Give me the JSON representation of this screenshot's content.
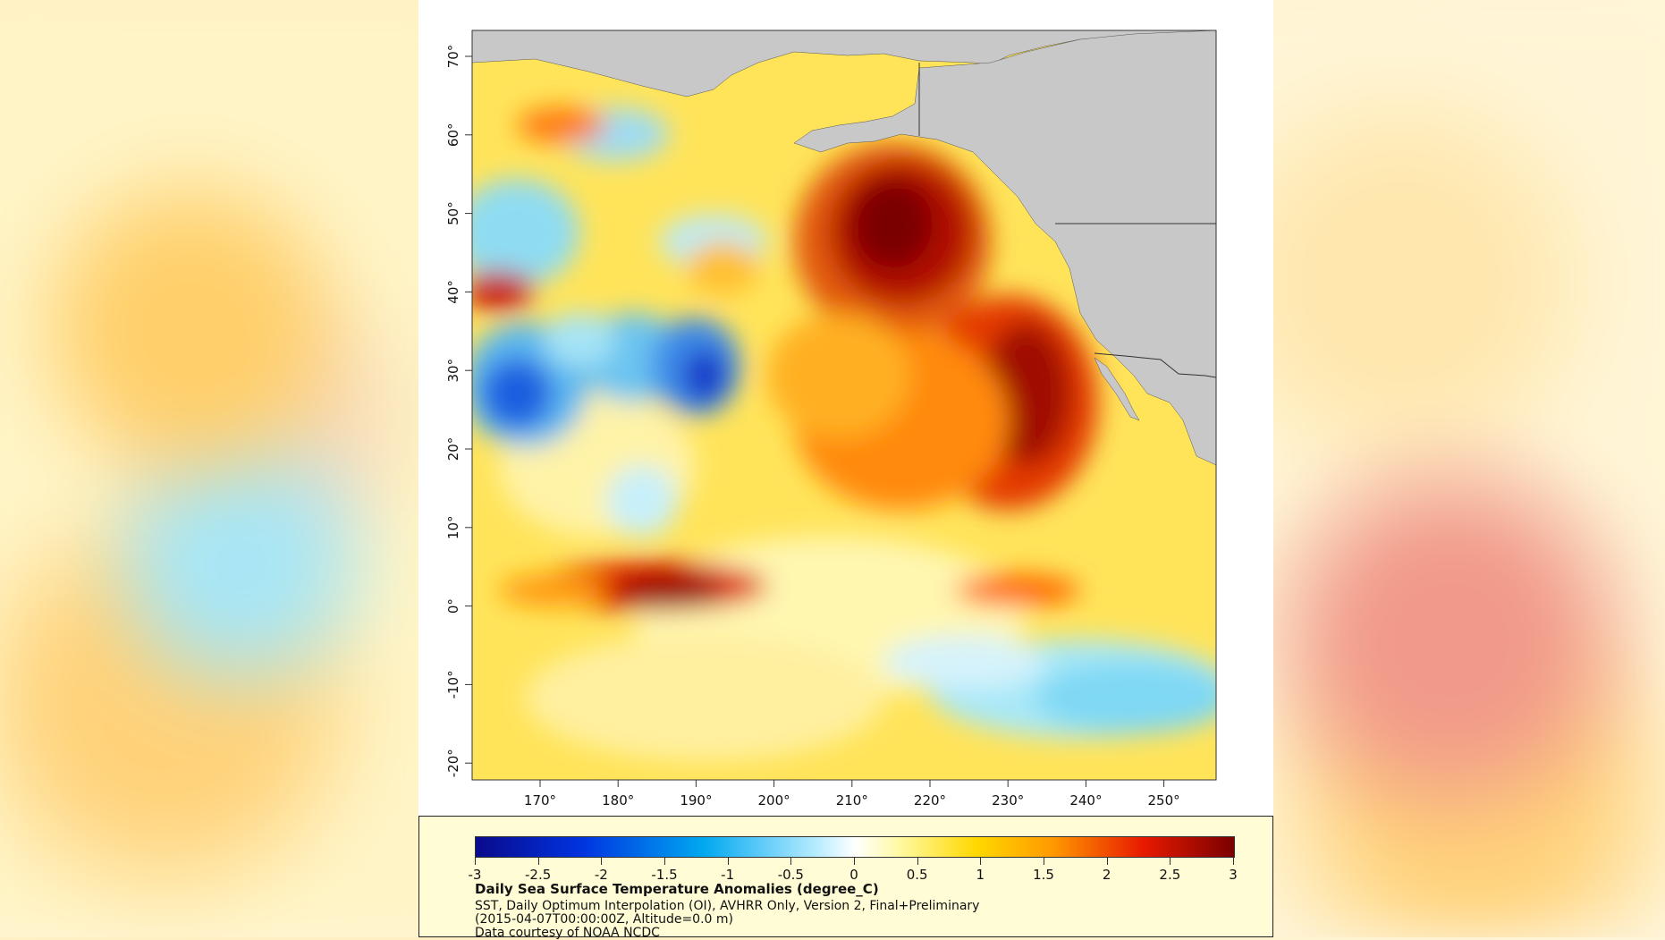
{
  "colors": {
    "land": "#c8c8c8",
    "border": "#333333",
    "panel": "#ffffff",
    "legend_bg": "#fffcd6"
  },
  "map": {
    "lat_ticks": [
      "70°",
      "60°",
      "50°",
      "40°",
      "30°",
      "20°",
      "10°",
      "0°",
      "-10°",
      "-20°"
    ],
    "lon_ticks": [
      "170°",
      "180°",
      "190°",
      "200°",
      "210°",
      "220°",
      "230°",
      "240°",
      "250°"
    ]
  },
  "colorbar": {
    "ticks": [
      "-3",
      "-2.5",
      "-2",
      "-1.5",
      "-1",
      "-0.5",
      "0",
      "0.5",
      "1",
      "1.5",
      "2",
      "2.5",
      "3"
    ]
  },
  "legend": {
    "title": "Daily Sea Surface Temperature Anomalies (degree_C)",
    "line1": "SST, Daily Optimum Interpolation (OI), AVHRR Only, Version 2, Final+Preliminary",
    "line2": "(2015-04-07T00:00:00Z, Altitude=0.0 m)",
    "line3": "Data courtesy of NOAA NCDC"
  }
}
